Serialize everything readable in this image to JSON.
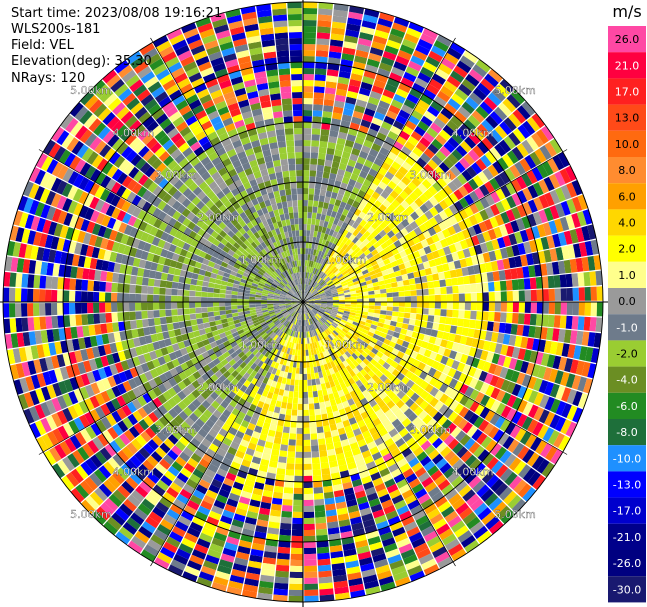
{
  "info": {
    "start_time": "Start time: 2023/08/08 19:16:21",
    "station": "WLS200s-181",
    "field": "Field: VEL",
    "elevation": "Elevation(deg): 35.30",
    "nrays": "NRays: 120"
  },
  "colorbar": {
    "unit": "m/s",
    "ticks": [
      "26.0",
      "21.0",
      "17.0",
      "13.0",
      "10.0",
      "8.0",
      "6.0",
      "4.0",
      "2.0",
      "1.0",
      "0.0",
      "-1.0",
      "-2.0",
      "-4.0",
      "-6.0",
      "-8.0",
      "-10.0",
      "-13.0",
      "-17.0",
      "-21.0",
      "-26.0",
      "-30.0"
    ],
    "colors": [
      "#ff48a4",
      "#ff0040",
      "#ff2020",
      "#ff4a18",
      "#ff6a10",
      "#ff8c30",
      "#ffa000",
      "#ffd700",
      "#ffff00",
      "#ffff8c",
      "#9a9a9a",
      "#6e7b8b",
      "#9acd32",
      "#6b8e23",
      "#228b22",
      "#1e6f3a",
      "#1e90ff",
      "#0000ff",
      "#0000cd",
      "#00008b",
      "#000080",
      "#191970"
    ]
  },
  "range_labels": [
    "1.00km",
    "2.00km",
    "3.00km",
    "4.00km",
    "5.00km"
  ],
  "chart_data": {
    "type": "heatmap",
    "projection": "polar PPI",
    "field": "VEL",
    "units": "m/s",
    "nrays": 120,
    "elevation_deg": 35.3,
    "range_rings_km": [
      1,
      2,
      3,
      4,
      5
    ],
    "color_levels": [
      -30,
      -26,
      -21,
      -17,
      -13,
      -10,
      -8,
      -6,
      -4,
      -2,
      -1,
      0,
      1,
      2,
      4,
      6,
      8,
      10,
      13,
      17,
      21,
      26
    ],
    "pattern": {
      "near_field_km": [
        0,
        3.4
      ],
      "positive_sector_deg": [
        30,
        150
      ],
      "positive_values": [
        2,
        4
      ],
      "negative_sector_deg": [
        220,
        330
      ],
      "negative_values": [
        -4,
        -1
      ],
      "far_field_noise_km": [
        3.4,
        5.0
      ]
    }
  }
}
